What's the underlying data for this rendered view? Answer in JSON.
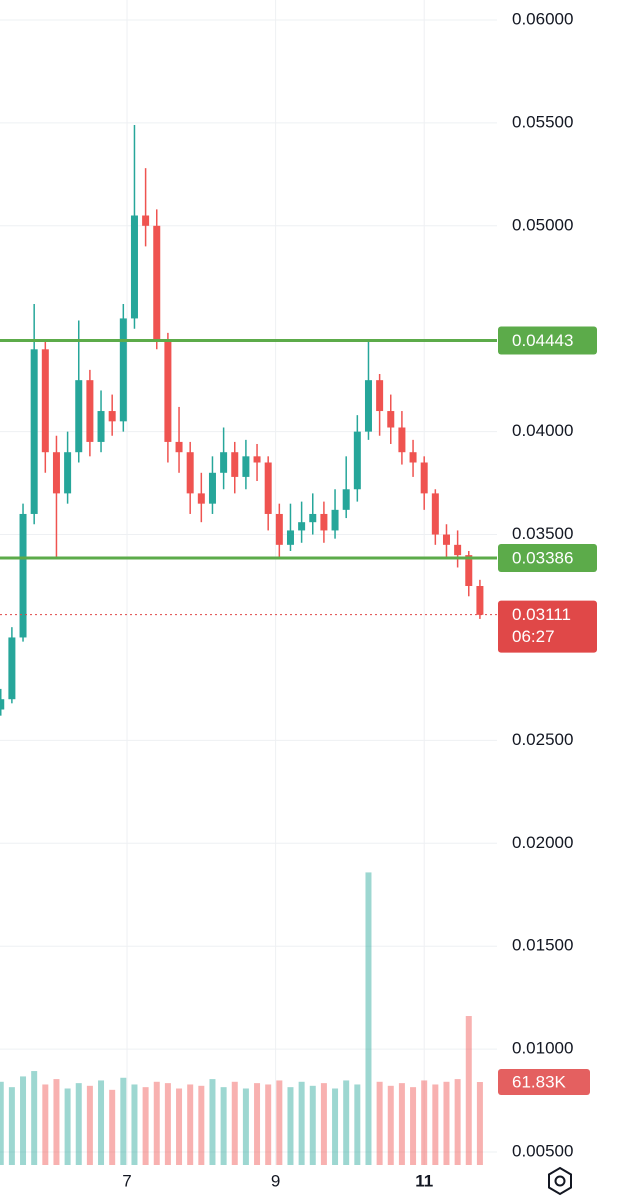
{
  "chart_data": {
    "type": "candlestick",
    "x": [
      5.3,
      5.45,
      5.6,
      5.75,
      5.9,
      6.05,
      6.2,
      6.35,
      6.5,
      6.65,
      6.8,
      6.95,
      7.1,
      7.25,
      7.4,
      7.55,
      7.7,
      7.85,
      8.0,
      8.15,
      8.3,
      8.45,
      8.6,
      8.75,
      8.9,
      9.05,
      9.2,
      9.35,
      9.5,
      9.65,
      9.8,
      9.95,
      10.1,
      10.25,
      10.4,
      10.55,
      10.7,
      10.85,
      11.0,
      11.15,
      11.3,
      11.45,
      11.6,
      11.75
    ],
    "open": [
      0.0265,
      0.027,
      0.03,
      0.036,
      0.044,
      0.039,
      0.037,
      0.039,
      0.0425,
      0.0395,
      0.041,
      0.0405,
      0.0455,
      0.0505,
      0.05,
      0.0445,
      0.0395,
      0.039,
      0.037,
      0.0365,
      0.038,
      0.039,
      0.0378,
      0.0388,
      0.0385,
      0.036,
      0.0345,
      0.0352,
      0.0356,
      0.036,
      0.0352,
      0.0362,
      0.0372,
      0.04,
      0.0425,
      0.041,
      0.0402,
      0.039,
      0.0385,
      0.037,
      0.035,
      0.0345,
      0.034,
      0.0325
    ],
    "high": [
      0.0275,
      0.0305,
      0.0365,
      0.0462,
      0.0445,
      0.0398,
      0.04,
      0.0454,
      0.043,
      0.042,
      0.0418,
      0.0462,
      0.0549,
      0.0528,
      0.0508,
      0.0448,
      0.0412,
      0.0395,
      0.038,
      0.0388,
      0.0402,
      0.0395,
      0.0396,
      0.0394,
      0.0388,
      0.0365,
      0.0365,
      0.0366,
      0.037,
      0.0366,
      0.0372,
      0.0388,
      0.0408,
      0.0444,
      0.0428,
      0.0418,
      0.041,
      0.0396,
      0.0388,
      0.0372,
      0.0355,
      0.0352,
      0.0342,
      0.0328
    ],
    "low": [
      0.0262,
      0.0268,
      0.0298,
      0.0355,
      0.038,
      0.0338,
      0.0365,
      0.0385,
      0.0388,
      0.039,
      0.0398,
      0.04,
      0.045,
      0.049,
      0.044,
      0.0385,
      0.038,
      0.036,
      0.0356,
      0.036,
      0.0372,
      0.037,
      0.0372,
      0.0376,
      0.0352,
      0.0338,
      0.0342,
      0.0346,
      0.035,
      0.0346,
      0.0348,
      0.0358,
      0.0366,
      0.0396,
      0.0398,
      0.0394,
      0.0384,
      0.0378,
      0.0362,
      0.0345,
      0.0338,
      0.0334,
      0.032,
      0.0309
    ],
    "close": [
      0.027,
      0.03,
      0.036,
      0.044,
      0.039,
      0.037,
      0.039,
      0.0425,
      0.0395,
      0.041,
      0.0405,
      0.0455,
      0.0505,
      0.05,
      0.0445,
      0.0395,
      0.039,
      0.037,
      0.0365,
      0.038,
      0.039,
      0.0378,
      0.0388,
      0.0385,
      0.036,
      0.0345,
      0.0352,
      0.0356,
      0.036,
      0.0352,
      0.0362,
      0.0372,
      0.04,
      0.0425,
      0.041,
      0.0402,
      0.039,
      0.0385,
      0.037,
      0.035,
      0.0345,
      0.034,
      0.0325,
      0.0311
    ],
    "volume": [
      62000,
      58000,
      66000,
      70000,
      60000,
      64000,
      57000,
      61000,
      59000,
      63000,
      56000,
      65000,
      60000,
      58000,
      62000,
      61000,
      57000,
      60000,
      59000,
      64000,
      58000,
      62000,
      57000,
      61000,
      60000,
      63000,
      58000,
      62000,
      59000,
      61000,
      57000,
      63000,
      60000,
      218000,
      62000,
      59000,
      61000,
      58000,
      63000,
      60000,
      62000,
      64000,
      111000,
      61830
    ],
    "up_color": "#26a69a",
    "down_color": "#ef5350",
    "ylim": [
      0.00437,
      0.06097
    ],
    "yticks": [
      {
        "value": 0.06,
        "label": "0.06000"
      },
      {
        "value": 0.055,
        "label": "0.05500"
      },
      {
        "value": 0.05,
        "label": "0.05000"
      },
      {
        "value": 0.04,
        "label": "0.04000"
      },
      {
        "value": 0.035,
        "label": "0.03500"
      },
      {
        "value": 0.025,
        "label": "0.02500"
      },
      {
        "value": 0.02,
        "label": "0.02000"
      },
      {
        "value": 0.015,
        "label": "0.01500"
      },
      {
        "value": 0.01,
        "label": "0.01000"
      },
      {
        "value": 0.005,
        "label": "0.00500"
      }
    ],
    "xlim": [
      5.29,
      11.98
    ],
    "xticks": [
      7,
      9,
      11
    ],
    "volume_lim": [
      0,
      868000
    ],
    "grid": true,
    "levels": [
      {
        "value": 0.04443,
        "label": "0.04443",
        "color": "#5cab4a"
      },
      {
        "value": 0.03386,
        "label": "0.03386",
        "color": "#5cab4a"
      }
    ],
    "last_price": {
      "value": 0.03111,
      "label": "0.03111",
      "color": "#e04848"
    },
    "countdown": "06:27",
    "volume_label": {
      "value": 61830,
      "label": "61.83K"
    }
  }
}
